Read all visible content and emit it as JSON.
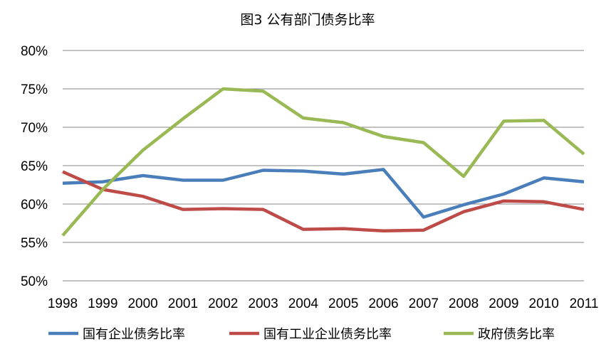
{
  "chart_data": {
    "type": "line",
    "title": "图3  公有部门债务比率",
    "xlabel": "",
    "ylabel": "",
    "categories": [
      "1998",
      "1999",
      "2000",
      "2001",
      "2002",
      "2003",
      "2004",
      "2005",
      "2006",
      "2007",
      "2008",
      "2009",
      "2010",
      "2011"
    ],
    "y_ticks": [
      "50%",
      "55%",
      "60%",
      "65%",
      "70%",
      "75%",
      "80%"
    ],
    "ylim": [
      50,
      80
    ],
    "grid": true,
    "legend_position": "bottom",
    "series": [
      {
        "name": "国有企业债务比率",
        "color": "#4a7ebb",
        "values": [
          62.7,
          62.9,
          63.7,
          63.1,
          63.1,
          64.4,
          64.3,
          63.9,
          64.5,
          58.3,
          59.9,
          61.3,
          63.4,
          62.9
        ]
      },
      {
        "name": "国有工业企业债务比率",
        "color": "#be4b48",
        "values": [
          64.2,
          61.9,
          61.0,
          59.3,
          59.4,
          59.3,
          56.7,
          56.8,
          56.5,
          56.6,
          59.0,
          60.4,
          60.3,
          59.3
        ]
      },
      {
        "name": "政府债务比率",
        "color": "#98b954",
        "values": [
          55.9,
          61.9,
          67.0,
          71.1,
          75.0,
          74.7,
          71.2,
          70.6,
          68.8,
          68.0,
          63.6,
          70.8,
          70.9,
          66.5
        ]
      }
    ]
  }
}
